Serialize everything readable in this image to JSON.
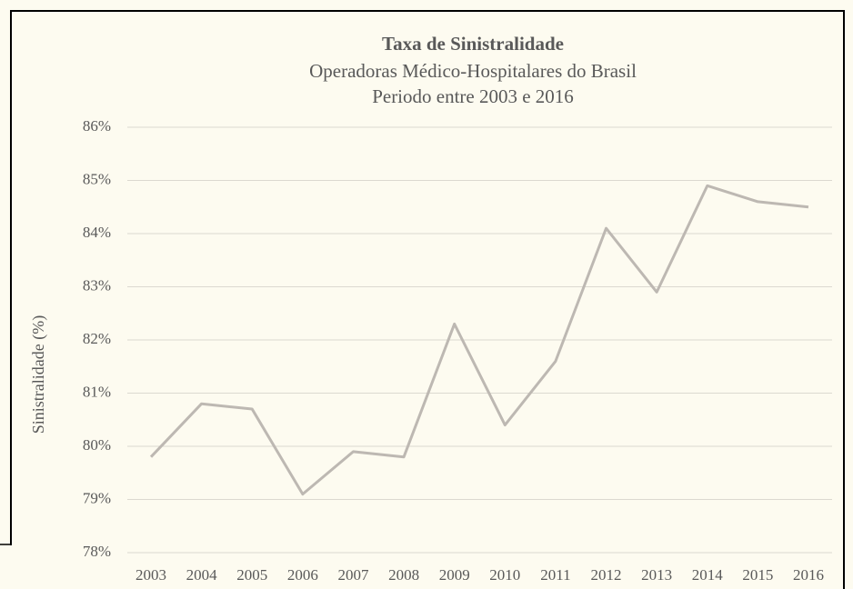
{
  "chart_data": {
    "type": "line",
    "title": "Taxa de Sinistralidade",
    "subtitle": [
      "Operadoras Médico-Hospitalares do Brasil",
      "Periodo entre 2003 e 2016"
    ],
    "y_label": "Sinistralidade (%)",
    "categories": [
      "2003",
      "2004",
      "2005",
      "2006",
      "2007",
      "2008",
      "2009",
      "2010",
      "2011",
      "2012",
      "2013",
      "2014",
      "2015",
      "2016"
    ],
    "series": [
      {
        "name": "Sinistralidade",
        "color": "#bdb8b2",
        "values": [
          79.8,
          80.8,
          80.7,
          79.1,
          79.9,
          79.8,
          82.3,
          80.4,
          81.6,
          84.1,
          82.9,
          84.9,
          84.6,
          84.5
        ]
      }
    ],
    "ylim": [
      78,
      86
    ],
    "yticks": [
      {
        "value": 78,
        "label": "78%"
      },
      {
        "value": 79,
        "label": "79%"
      },
      {
        "value": 80,
        "label": "80%"
      },
      {
        "value": 81,
        "label": "81%"
      },
      {
        "value": 82,
        "label": "82%"
      },
      {
        "value": 83,
        "label": "83%"
      },
      {
        "value": 84,
        "label": "84%"
      },
      {
        "value": 85,
        "label": "85%"
      },
      {
        "value": 86,
        "label": "86%"
      }
    ],
    "grid": true
  }
}
